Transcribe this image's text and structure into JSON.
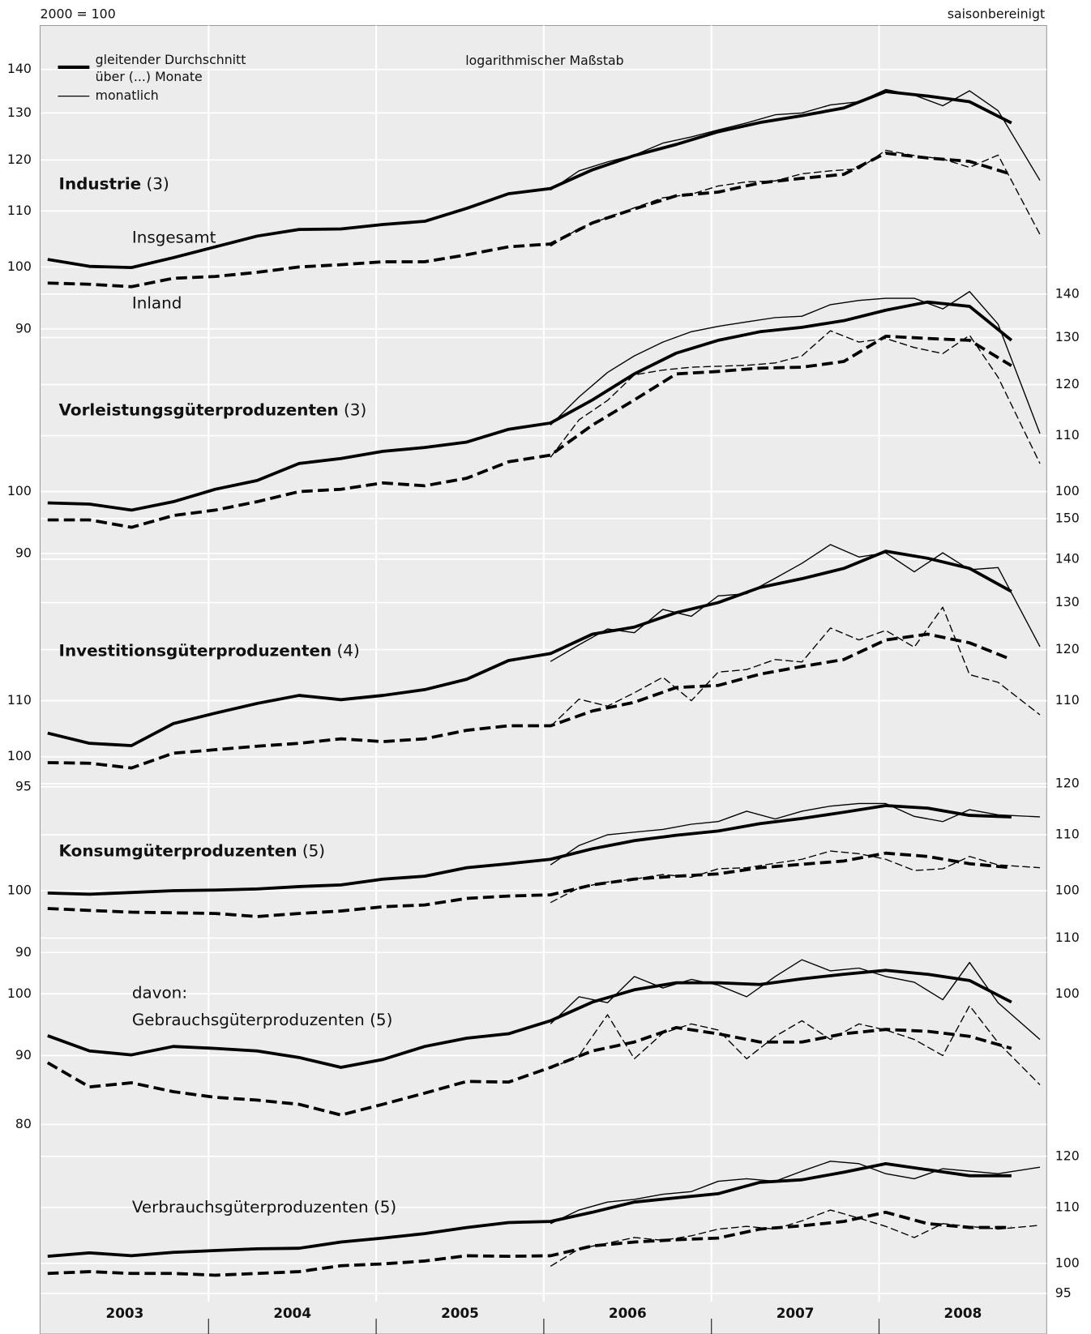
{
  "chart_data": {
    "type": "line",
    "header": "2000 = 100",
    "note": "saisonbereinigt",
    "subtitle": "logarithmischer Maßstab",
    "log_scale": true,
    "grid": true,
    "legend_position": "upper left",
    "legend": [
      {
        "lines": [
          "gleitender Durchschnitt",
          "über (...) Monate"
        ],
        "style": "average"
      },
      {
        "lines": [
          "monatlich"
        ],
        "style": "monthly"
      }
    ],
    "xlim": [
      2003,
      2009
    ],
    "xticks": [
      2004,
      2005,
      2006,
      2007,
      2008
    ],
    "categories": [
      "2003",
      "2004",
      "2005",
      "2006",
      "2007",
      "2008"
    ],
    "x": [
      2003.04,
      2003.29,
      2003.54,
      2003.79,
      2004.04,
      2004.29,
      2004.54,
      2004.79,
      2005.04,
      2005.29,
      2005.54,
      2005.79,
      2006.04,
      2006.29,
      2006.54,
      2006.79,
      2007.04,
      2007.29,
      2007.54,
      2007.79,
      2008.04,
      2008.29,
      2008.54,
      2008.79
    ],
    "x_monthly": [
      2006.04,
      2006.21,
      2006.38,
      2006.54,
      2006.71,
      2006.88,
      2007.04,
      2007.21,
      2007.38,
      2007.54,
      2007.71,
      2007.88,
      2008.04,
      2008.21,
      2008.38,
      2008.54,
      2008.71,
      2008.96
    ],
    "panels": [
      {
        "title": "Industrie",
        "title_bold": true,
        "title_note": "(3)",
        "annotations": [
          "Insgesamt",
          "Inland"
        ],
        "ylim": [
          85,
          150
        ],
        "yticks": [
          90,
          100,
          110,
          120,
          130,
          140
        ],
        "y2ticks": [],
        "series": [
          {
            "style": "average",
            "dash": false,
            "values": [
              101.3,
              100.1,
              99.9,
              101.6,
              103.5,
              105.4,
              106.6,
              106.7,
              107.5,
              108.1,
              110.5,
              113.3,
              114.3,
              118.0,
              120.9,
              123.2,
              125.9,
              127.9,
              129.4,
              131.1,
              134.8,
              133.8,
              132.5,
              127.8
            ]
          },
          {
            "style": "average",
            "dash": true,
            "values": [
              97.3,
              97.1,
              96.7,
              98.1,
              98.4,
              99.1,
              100.0,
              100.4,
              100.9,
              100.9,
              102.1,
              103.5,
              104.0,
              107.8,
              110.4,
              112.9,
              113.6,
              115.4,
              116.3,
              117.1,
              121.4,
              120.4,
              119.7,
              117.1
            ]
          },
          {
            "style": "monthly",
            "dash": false,
            "values": [
              114.0,
              117.8,
              119.6,
              121.0,
              123.5,
              124.8,
              126.3,
              127.8,
              129.6,
              130.0,
              131.8,
              132.5,
              135.3,
              134.0,
              131.6,
              135.0,
              130.5,
              115.9
            ]
          },
          {
            "style": "monthly",
            "dash": true,
            "values": [
              103.6,
              106.8,
              108.8,
              110.6,
              112.5,
              113.2,
              114.8,
              115.6,
              115.8,
              117.2,
              117.8,
              118.2,
              122.0,
              120.9,
              120.2,
              118.5,
              121.0,
              105.7
            ]
          }
        ]
      },
      {
        "title": "Vorleistungsgüterproduzenten",
        "title_bold": true,
        "title_note": "(3)",
        "ylim": [
          85,
          150
        ],
        "yticks": [
          90,
          100
        ],
        "y2ticks": [
          100,
          110,
          120,
          130,
          140
        ],
        "series": [
          {
            "style": "average",
            "dash": false,
            "values": [
              98.1,
              97.9,
              96.9,
              98.3,
              100.4,
              101.9,
              104.9,
              105.8,
              107.1,
              107.8,
              108.8,
              111.2,
              112.4,
              116.9,
              122.2,
              126.6,
              129.4,
              131.3,
              132.3,
              133.8,
              136.2,
              138.1,
              137.1,
              129.4
            ]
          },
          {
            "style": "average",
            "dash": true,
            "values": [
              95.3,
              95.3,
              94.1,
              96.0,
              96.9,
              98.3,
              100.0,
              100.4,
              101.5,
              101.0,
              102.3,
              105.2,
              106.4,
              112.0,
              116.9,
              122.2,
              122.7,
              123.4,
              123.6,
              124.8,
              130.3,
              129.8,
              129.4,
              123.9
            ]
          },
          {
            "style": "monthly",
            "dash": false,
            "values": [
              112.0,
              117.5,
              122.5,
              126.0,
              129.0,
              131.3,
              132.5,
              133.5,
              134.5,
              134.8,
              137.5,
              138.5,
              139.0,
              139.0,
              136.5,
              140.6,
              133.0,
              110.4
            ]
          },
          {
            "style": "monthly",
            "dash": true,
            "values": [
              106.0,
              113.0,
              116.8,
              122.0,
              123.0,
              123.6,
              123.8,
              124.0,
              124.5,
              126.0,
              131.5,
              129.0,
              129.8,
              127.8,
              126.5,
              130.5,
              121.5,
              104.9
            ]
          }
        ]
      },
      {
        "title": "Investitionsgüterproduzenten",
        "title_bold": true,
        "title_note": "(4)",
        "ylim": [
          92,
          160
        ],
        "yticks": [
          95,
          100,
          110
        ],
        "y2ticks": [
          110,
          120,
          130,
          140,
          150
        ],
        "series": [
          {
            "style": "average",
            "dash": false,
            "values": [
              104.1,
              102.3,
              101.9,
              105.8,
              107.7,
              109.5,
              111.0,
              110.2,
              111.0,
              112.1,
              114.1,
              117.8,
              119.2,
              123.2,
              124.7,
              127.8,
              130.0,
              133.4,
              135.4,
              137.8,
              141.9,
              140.2,
              137.8,
              132.5
            ]
          },
          {
            "style": "average",
            "dash": true,
            "values": [
              99.0,
              98.9,
              98.1,
              100.6,
              101.2,
              101.8,
              102.3,
              103.1,
              102.6,
              103.1,
              104.6,
              105.4,
              105.4,
              108.1,
              109.7,
              112.5,
              112.9,
              115.1,
              116.6,
              118.0,
              122.0,
              123.2,
              121.4,
              118.0
            ]
          },
          {
            "style": "monthly",
            "dash": false,
            "values": [
              117.6,
              121.0,
              124.3,
              123.5,
              128.5,
              127.0,
              131.5,
              132.0,
              135.5,
              139.0,
              143.5,
              140.5,
              141.5,
              137.0,
              141.5,
              137.5,
              138.0,
              120.6
            ]
          },
          {
            "style": "monthly",
            "dash": true,
            "values": [
              105.3,
              110.3,
              109.0,
              111.5,
              114.5,
              110.0,
              115.5,
              116.0,
              118.0,
              117.5,
              124.5,
              122.0,
              124.0,
              120.5,
              129.0,
              115.0,
              113.5,
              107.4
            ]
          }
        ]
      },
      {
        "title": "Konsumgüterproduzenten",
        "title_bold": true,
        "title_note": "(5)",
        "ylim": [
          87,
          125
        ],
        "yticks": [
          90,
          100
        ],
        "y2ticks": [
          100,
          110,
          120
        ],
        "series": [
          {
            "style": "average",
            "dash": false,
            "values": [
              99.6,
              99.4,
              99.7,
              100.0,
              100.1,
              100.3,
              100.7,
              101.0,
              102.0,
              102.5,
              104.0,
              104.7,
              105.5,
              107.4,
              108.9,
              109.9,
              110.7,
              112.1,
              113.1,
              114.3,
              115.6,
              115.1,
              113.7,
              113.4
            ]
          },
          {
            "style": "average",
            "dash": true,
            "values": [
              97.0,
              96.7,
              96.4,
              96.3,
              96.2,
              95.7,
              96.2,
              96.6,
              97.3,
              97.6,
              98.7,
              99.1,
              99.3,
              101.0,
              102.0,
              102.5,
              102.9,
              104.0,
              104.6,
              105.2,
              106.6,
              106.0,
              104.7,
              104.0
            ]
          },
          {
            "style": "monthly",
            "dash": false,
            "values": [
              104.5,
              108.0,
              110.0,
              110.5,
              111.0,
              112.0,
              112.5,
              114.5,
              113.0,
              114.5,
              115.5,
              116.0,
              116.0,
              113.5,
              112.5,
              114.8,
              113.8,
              113.4
            ]
          },
          {
            "style": "monthly",
            "dash": true,
            "values": [
              98.0,
              100.5,
              101.5,
              102.0,
              102.8,
              102.3,
              103.8,
              104.0,
              104.8,
              105.5,
              107.0,
              106.5,
              105.5,
              103.5,
              103.8,
              106.0,
              104.5,
              104.0
            ]
          }
        ]
      },
      {
        "title": "Gebrauchsgüterproduzenten (5)",
        "title_bold": false,
        "label": "davon:",
        "ylim": [
          77,
          115
        ],
        "yticks": [
          80,
          90,
          100
        ],
        "y2ticks": [
          100,
          110
        ],
        "series": [
          {
            "style": "average",
            "dash": false,
            "values": [
              93.1,
              90.7,
              90.1,
              91.4,
              91.1,
              90.7,
              89.7,
              88.2,
              89.4,
              91.4,
              92.7,
              93.4,
              95.5,
              98.6,
              100.7,
              101.9,
              101.9,
              101.6,
              102.6,
              103.4,
              104.1,
              103.4,
              102.3,
              98.6
            ]
          },
          {
            "style": "average",
            "dash": true,
            "values": [
              88.9,
              85.3,
              85.9,
              84.6,
              83.8,
              83.4,
              82.8,
              81.3,
              82.8,
              84.4,
              86.1,
              86.0,
              88.2,
              90.7,
              92.1,
              94.4,
              93.4,
              92.1,
              92.1,
              93.4,
              94.1,
              93.8,
              93.0,
              91.1
            ]
          },
          {
            "style": "monthly",
            "dash": false,
            "values": [
              95.0,
              99.5,
              98.5,
              103.0,
              101.0,
              102.5,
              101.5,
              99.5,
              103.0,
              106.0,
              104.0,
              104.5,
              103.0,
              102.0,
              99.0,
              105.5,
              98.5,
              92.5
            ]
          },
          {
            "style": "monthly",
            "dash": true,
            "values": [
              88.0,
              90.0,
              96.5,
              89.5,
              93.5,
              95.0,
              94.0,
              89.5,
              93.0,
              95.5,
              92.5,
              95.0,
              94.0,
              92.5,
              90.0,
              98.0,
              92.0,
              85.6
            ]
          }
        ]
      },
      {
        "title": "Verbrauchsgüterproduzenten (5)",
        "title_bold": false,
        "ylim": [
          93,
          125
        ],
        "yticks": [],
        "y2ticks": [
          95,
          100,
          110,
          120
        ],
        "series": [
          {
            "style": "average",
            "dash": false,
            "values": [
              101.2,
              101.8,
              101.3,
              101.9,
              102.2,
              102.5,
              102.6,
              103.7,
              104.4,
              105.2,
              106.3,
              107.2,
              107.4,
              109.1,
              111.0,
              111.8,
              112.6,
              114.8,
              115.3,
              116.8,
              118.5,
              117.3,
              116.1,
              116.1
            ]
          },
          {
            "style": "average",
            "dash": true,
            "values": [
              98.3,
              98.6,
              98.3,
              98.3,
              98.0,
              98.3,
              98.6,
              99.6,
              99.9,
              100.4,
              101.3,
              101.2,
              101.3,
              103.0,
              103.7,
              104.1,
              104.4,
              106.0,
              106.6,
              107.4,
              109.1,
              107.0,
              106.3,
              106.3
            ]
          },
          {
            "style": "monthly",
            "dash": false,
            "values": [
              107.0,
              109.5,
              111.0,
              111.5,
              112.5,
              113.0,
              115.0,
              115.5,
              115.0,
              117.0,
              119.0,
              118.5,
              116.5,
              115.5,
              117.5,
              117.0,
              116.5,
              117.8
            ]
          },
          {
            "style": "monthly",
            "dash": true,
            "values": [
              99.5,
              102.5,
              103.5,
              104.5,
              104.0,
              104.8,
              106.0,
              106.5,
              106.0,
              107.5,
              109.5,
              108.0,
              106.5,
              104.5,
              107.0,
              106.5,
              106.0,
              106.7
            ]
          }
        ]
      }
    ]
  }
}
